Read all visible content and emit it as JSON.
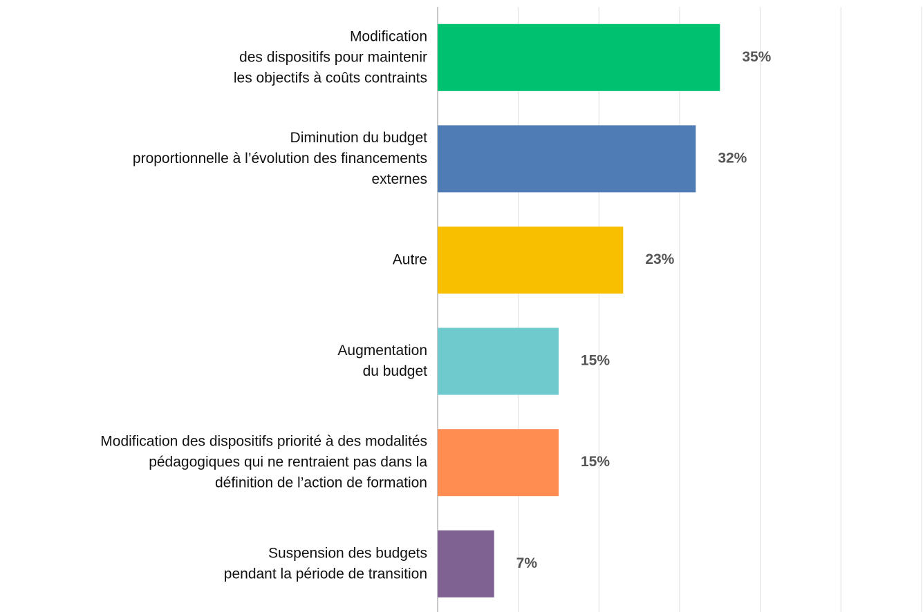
{
  "chart_data": {
    "type": "hbar",
    "categories": [
      "Modification\ndes dispositifs pour maintenir\nles objectifs à coûts contraints",
      "Diminution du budget\nproportionnelle à l’évolution des financements\nexternes",
      "Autre",
      "Augmentation\ndu budget",
      "Modification des dispositifs priorité à des modalités\npédagogiques qui ne rentraient pas dans la\ndéfinition de l’action de formation",
      "Suspension des budgets\npendant la période de transition"
    ],
    "values": [
      35,
      32,
      23,
      15,
      15,
      7
    ],
    "value_labels": [
      "35%",
      "32%",
      "23%",
      "15%",
      "15%",
      "7%"
    ],
    "colors": [
      "#00c170",
      "#507cb6",
      "#f8bf00",
      "#6ecacd",
      "#ff8c50",
      "#7f6192"
    ],
    "xlim": [
      0,
      60
    ],
    "xticks": [
      0,
      10,
      20,
      30,
      40,
      50,
      60
    ],
    "grid": true
  }
}
